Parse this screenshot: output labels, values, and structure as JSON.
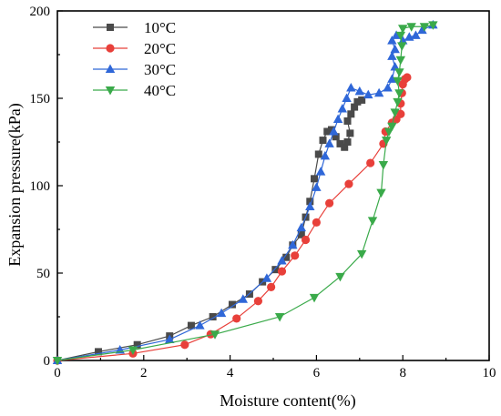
{
  "chart_data": {
    "type": "line",
    "xlabel": "Moisture content(%)",
    "ylabel": "Expansion pressure(kPa)",
    "xlim": [
      0,
      10
    ],
    "ylim": [
      0,
      200
    ],
    "xticks": [
      0,
      2,
      4,
      6,
      8,
      10
    ],
    "yticks": [
      0,
      50,
      100,
      150,
      200
    ],
    "grid": false,
    "legend_position": "top-left",
    "series": [
      {
        "name": "10°C",
        "color": "#4a4a4a",
        "marker": "square",
        "points": [
          [
            0,
            0
          ],
          [
            0.95,
            5
          ],
          [
            1.85,
            9
          ],
          [
            2.6,
            14
          ],
          [
            3.1,
            20
          ],
          [
            3.6,
            25
          ],
          [
            4.05,
            32
          ],
          [
            4.45,
            38
          ],
          [
            4.75,
            45
          ],
          [
            5.05,
            52
          ],
          [
            5.3,
            59
          ],
          [
            5.45,
            66
          ],
          [
            5.65,
            72
          ],
          [
            5.75,
            82
          ],
          [
            5.85,
            91
          ],
          [
            5.95,
            104
          ],
          [
            6.05,
            118
          ],
          [
            6.15,
            126
          ],
          [
            6.25,
            131
          ],
          [
            6.35,
            132
          ],
          [
            6.45,
            128
          ],
          [
            6.55,
            124
          ],
          [
            6.65,
            122
          ],
          [
            6.72,
            125
          ],
          [
            6.78,
            130
          ],
          [
            6.72,
            137
          ],
          [
            6.8,
            141
          ],
          [
            6.88,
            145
          ],
          [
            6.95,
            148
          ],
          [
            7.05,
            149
          ]
        ]
      },
      {
        "name": "20°C",
        "color": "#e8403a",
        "marker": "circle",
        "points": [
          [
            0,
            0
          ],
          [
            1.75,
            4
          ],
          [
            2.95,
            9
          ],
          [
            3.55,
            15
          ],
          [
            4.15,
            24
          ],
          [
            4.65,
            34
          ],
          [
            4.95,
            42
          ],
          [
            5.2,
            51
          ],
          [
            5.5,
            60
          ],
          [
            5.75,
            69
          ],
          [
            6.0,
            79
          ],
          [
            6.3,
            90
          ],
          [
            6.75,
            101
          ],
          [
            7.25,
            113
          ],
          [
            7.55,
            124
          ],
          [
            7.6,
            131
          ],
          [
            7.75,
            136
          ],
          [
            7.85,
            138
          ],
          [
            7.95,
            141
          ],
          [
            7.95,
            147
          ],
          [
            7.98,
            153
          ],
          [
            8.0,
            158
          ],
          [
            8.05,
            161
          ],
          [
            8.1,
            162
          ]
        ]
      },
      {
        "name": "30°C",
        "color": "#2f67d8",
        "marker": "triangle-up",
        "points": [
          [
            0,
            0
          ],
          [
            1.45,
            6
          ],
          [
            2.6,
            12
          ],
          [
            3.3,
            20
          ],
          [
            3.8,
            27
          ],
          [
            4.3,
            35
          ],
          [
            4.85,
            47
          ],
          [
            5.2,
            57
          ],
          [
            5.45,
            66
          ],
          [
            5.65,
            76
          ],
          [
            5.85,
            88
          ],
          [
            6.0,
            99
          ],
          [
            6.1,
            108
          ],
          [
            6.2,
            117
          ],
          [
            6.3,
            124
          ],
          [
            6.4,
            131
          ],
          [
            6.5,
            138
          ],
          [
            6.6,
            144
          ],
          [
            6.7,
            150
          ],
          [
            6.8,
            156
          ],
          [
            7.0,
            154
          ],
          [
            7.2,
            152
          ],
          [
            7.45,
            153
          ],
          [
            7.65,
            156
          ],
          [
            7.75,
            161
          ],
          [
            7.82,
            168
          ],
          [
            7.75,
            174
          ],
          [
            7.82,
            178
          ],
          [
            7.75,
            183
          ],
          [
            7.85,
            186
          ],
          [
            8.0,
            183
          ],
          [
            8.15,
            185
          ],
          [
            8.3,
            186
          ],
          [
            8.45,
            189
          ],
          [
            8.7,
            192
          ]
        ]
      },
      {
        "name": "40°C",
        "color": "#3aaa4a",
        "marker": "triangle-down",
        "points": [
          [
            0,
            0
          ],
          [
            1.75,
            6
          ],
          [
            3.65,
            15
          ],
          [
            5.15,
            25
          ],
          [
            5.95,
            36
          ],
          [
            6.55,
            48
          ],
          [
            7.05,
            61
          ],
          [
            7.3,
            80
          ],
          [
            7.5,
            96
          ],
          [
            7.55,
            112
          ],
          [
            7.62,
            126
          ],
          [
            7.68,
            131
          ],
          [
            7.75,
            134
          ],
          [
            7.82,
            142
          ],
          [
            7.88,
            148
          ],
          [
            7.92,
            153
          ],
          [
            7.88,
            160
          ],
          [
            7.92,
            165
          ],
          [
            7.95,
            172
          ],
          [
            7.98,
            180
          ],
          [
            7.95,
            186
          ],
          [
            8.0,
            190
          ],
          [
            8.2,
            191
          ],
          [
            8.5,
            191
          ],
          [
            8.7,
            192
          ]
        ]
      }
    ]
  }
}
